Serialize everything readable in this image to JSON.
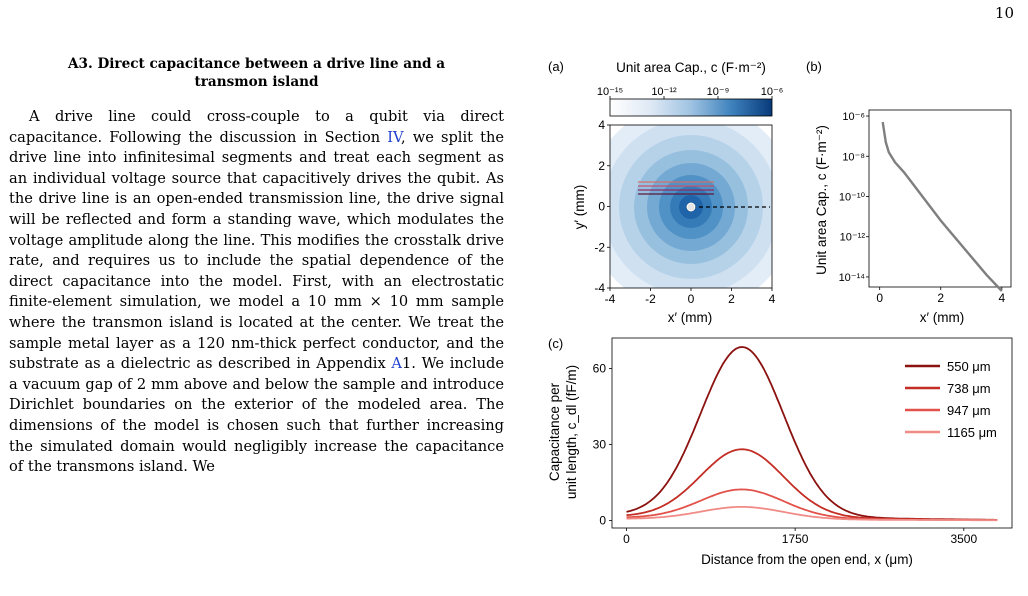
{
  "page": {
    "number": "10"
  },
  "section": {
    "title_line1": "A3.   Direct capacitance between a drive line and a",
    "title_line2": "transmon island"
  },
  "paragraph": {
    "part1": "A drive line could cross-couple to a qubit via direct capacitance. Following the discussion in Section ",
    "ref_section": "IV",
    "part2": ", we split the drive line into infinitesimal segments and treat each segment as an individual voltage source that capacitively drives the qubit. As the drive line is an open-ended transmission line, the drive signal will be reflected and form a standing wave, which modulates the voltage amplitude along the line. This modifies the crosstalk drive rate, and requires us to include the spatial dependence of the direct capacitance into the model. First, with an electrostatic finite-element simulation, we model a 10 mm × 10 mm sample where the transmon island is located at the center. We treat the sample metal layer as a 120 nm-thick perfect conductor, and the substrate as a dielectric as described in Appendix ",
    "ref_appendix": "A",
    "part3": "1. We include a vacuum gap of 2 mm above and below the sample and introduce Dirichlet boundaries on the exterior of the modeled area. The dimensions of the model is chosen such that further increasing the simulated domain would negligibly increase the capacitance of the transmons island. We"
  },
  "figure": {
    "panel_a": {
      "label": "(a)",
      "colorbar_title": "Unit area Cap., c (F·m⁻²)",
      "colorbar_ticks": [
        "10⁻¹⁵",
        "10⁻¹²",
        "10⁻⁹",
        "10⁻⁶"
      ],
      "xlabel": "x′ (mm)",
      "ylabel": "y′ (mm)",
      "xticks": [
        "-4",
        "-2",
        "0",
        "2",
        "4"
      ],
      "yticks": [
        "4",
        "2",
        "0",
        "-2",
        "-4"
      ]
    },
    "panel_b": {
      "label": "(b)",
      "ylabel": "Unit area Cap., c (F·m⁻²)",
      "xlabel": "x′ (mm)",
      "xticks": [
        "0",
        "2",
        "4"
      ],
      "yticks": [
        "10⁻⁶",
        "10⁻⁸",
        "10⁻¹⁰",
        "10⁻¹²",
        "10⁻¹⁴"
      ]
    },
    "panel_c": {
      "label": "(c)",
      "ylabel_line1": "Capacitance per",
      "ylabel_line2": "unit length, c_dl (fF/m)",
      "xlabel": "Distance from the open end, x (μm)",
      "xticks": [
        "0",
        "1750",
        "3500"
      ],
      "yticks": [
        "60",
        "30",
        "0"
      ]
    }
  },
  "chart_data": [
    {
      "type": "heatmap",
      "panel": "(a)",
      "description_values": "concentric contours of unit area capacitance centered at origin",
      "xlim": [
        -4,
        4
      ],
      "ylim": [
        -4,
        4
      ],
      "colorbar_range_log10": [
        -15,
        -6
      ],
      "colors": [
        "#e3edf8",
        "#cfe0f1",
        "#b6d2e9",
        "#97c0df",
        "#73a9d3",
        "#5192c6",
        "#347bb8",
        "#1f64a8",
        "#0e4a8f"
      ]
    },
    {
      "type": "line",
      "panel": "(b)",
      "xlim": [
        0,
        4
      ],
      "ylim_log10": [
        -14.5,
        -5.7
      ],
      "series": [
        {
          "x": [
            0.1,
            0.2,
            0.3,
            0.5,
            0.8,
            1.0,
            1.5,
            2.0,
            2.5,
            3.0,
            3.5,
            4.0
          ],
          "log10_y": [
            -6.3,
            -7.3,
            -7.8,
            -8.3,
            -8.8,
            -9.2,
            -10.2,
            -11.2,
            -12.1,
            -13.0,
            -13.9,
            -14.7
          ]
        }
      ],
      "line_color": "#7f7f7f"
    },
    {
      "type": "line",
      "panel": "(c)",
      "xlim": [
        -150,
        4000
      ],
      "ylim": [
        -3,
        72
      ],
      "series": [
        {
          "name": "550 μm",
          "color": "#8c1210",
          "peak": 69,
          "base": 2.0
        },
        {
          "name": "738 μm",
          "color": "#c42d24",
          "peak": 28.5,
          "base": 1.5
        },
        {
          "name": "947 μm",
          "color": "#e2524b",
          "peak": 12.5,
          "base": 1.0
        },
        {
          "name": "1165 μm",
          "color": "#f08b86",
          "peak": 5.5,
          "base": 0.6
        }
      ],
      "peak_x": 1200,
      "end_x": 3850
    }
  ]
}
